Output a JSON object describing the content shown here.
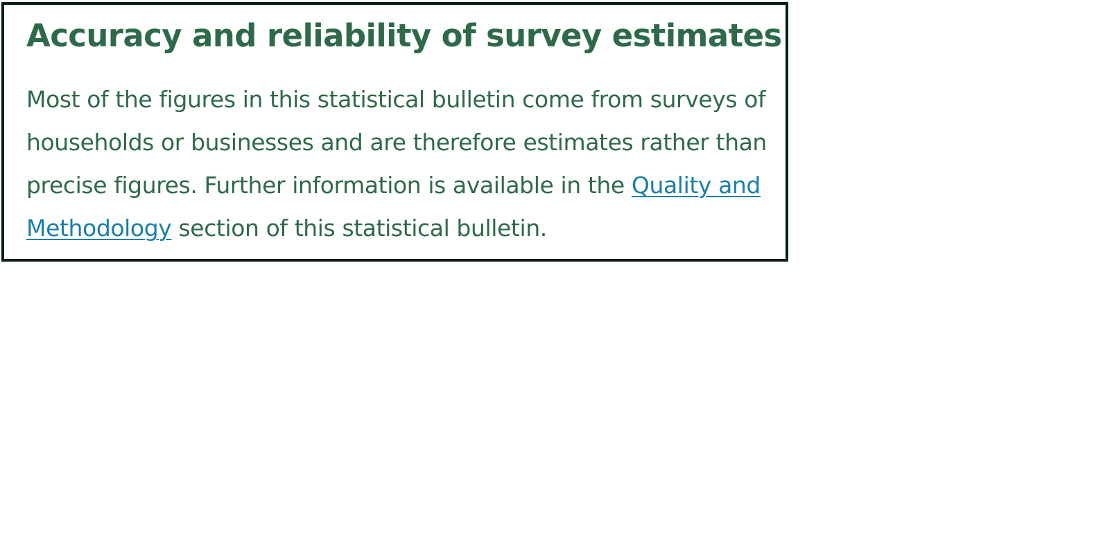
{
  "callout": {
    "title": "Accuracy and reliability of survey estimates",
    "body_before_link": "Most of the figures in this statistical bulletin come from surveys of households or businesses and are therefore estimates rather than precise figures. Further information is available in the ",
    "link_text": "Quality and Methodology",
    "body_after_link": " section of this statistical bulletin.",
    "colors": {
      "border": "#0a1f14",
      "text": "#2e6a49",
      "link": "#1a7fa8",
      "background": "#ffffff"
    }
  }
}
